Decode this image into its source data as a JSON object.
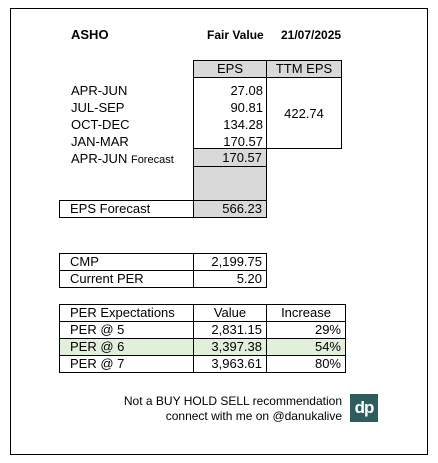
{
  "header": {
    "ticker": "ASHO",
    "fair_value_label": "Fair Value",
    "date": "21/07/2025"
  },
  "eps_table": {
    "col_eps": "EPS",
    "col_ttm": "TTM EPS",
    "rows": [
      {
        "label": "APR-JUN",
        "value": "27.08"
      },
      {
        "label": "JUL-SEP",
        "value": "90.81"
      },
      {
        "label": "OCT-DEC",
        "value": "134.28"
      },
      {
        "label": "JAN-MAR",
        "value": "170.57"
      }
    ],
    "forecast_label_main": "APR-JUN",
    "forecast_label_suffix": "Forecast",
    "forecast_value": "170.57",
    "ttm_value": "422.74"
  },
  "eps_forecast": {
    "label": "EPS Forecast",
    "value": "566.23"
  },
  "market": {
    "cmp_label": "CMP",
    "cmp_value": "2,199.75",
    "per_label": "Current PER",
    "per_value": "5.20"
  },
  "per_table": {
    "headers": [
      "PER Expectations",
      "Value",
      "Increase"
    ],
    "rows": [
      {
        "label": "PER @ 5",
        "value": "2,831.15",
        "increase": "29%"
      },
      {
        "label": "PER @ 6",
        "value": "3,397.38",
        "increase": "54%"
      },
      {
        "label": "PER @ 7",
        "value": "3,963.61",
        "increase": "80%"
      }
    ]
  },
  "footer": {
    "disclaimer": "Not a BUY HOLD SELL recommendation",
    "contact": "connect with me on @danukalive",
    "logo_text": "dp"
  },
  "colors": {
    "grey_fill": "#d9d9d9",
    "green_fill": "#e2efda",
    "logo_bg": "#2f5d5e"
  }
}
